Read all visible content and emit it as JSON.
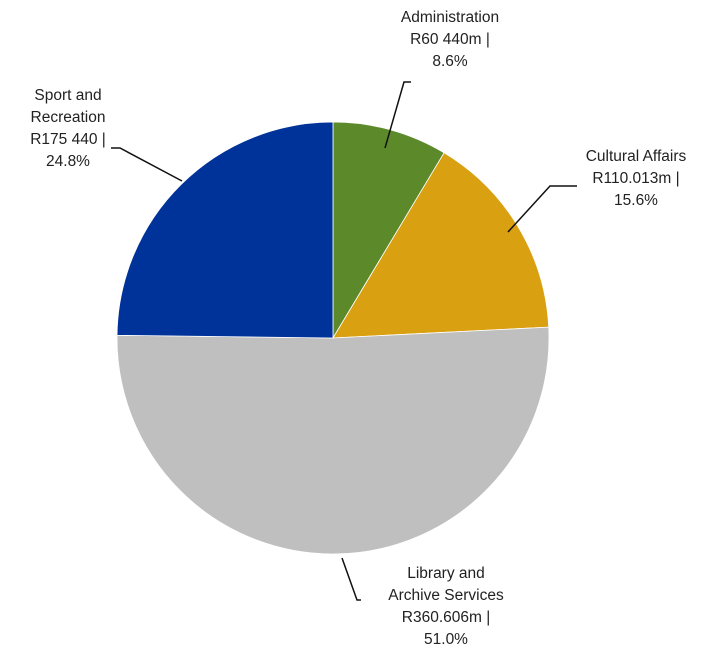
{
  "chart_data": {
    "type": "pie",
    "title": "",
    "slices": [
      {
        "name": "Administration",
        "value": 60.44,
        "percent": 8.6,
        "color": "#5C8A2A",
        "label_lines": [
          "Administration",
          "R60 440m |",
          "8.6%"
        ]
      },
      {
        "name": "Cultural Affairs",
        "value": 110.013,
        "percent": 15.6,
        "color": "#D9A012",
        "label_lines": [
          "Cultural Affairs",
          "R110.013m |",
          "15.6%"
        ]
      },
      {
        "name": "Library and Archive Services",
        "value": 360.606,
        "percent": 51.0,
        "color": "#BFBFBF",
        "label_lines": [
          "Library and",
          "Archive Services",
          "R360.606m |",
          "51.0%"
        ]
      },
      {
        "name": "Sport and Recreation",
        "value": 175.44,
        "percent": 24.8,
        "color": "#003399",
        "label_lines": [
          "Sport and",
          "Recreation",
          "R175 440 |",
          "24.8%"
        ]
      }
    ]
  }
}
